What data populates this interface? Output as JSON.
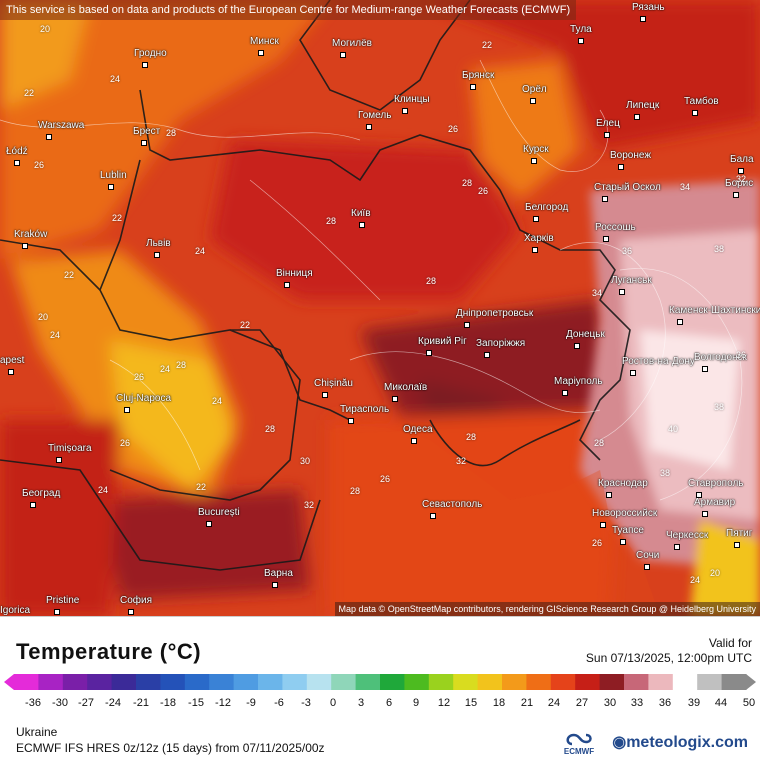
{
  "header_note": "This service is based on data and products of the European Centre for Medium-range Weather Forecasts (ECMWF)",
  "attribution": "Map data © OpenStreetMap contributors, rendering GIScience Research Group @ Heidelberg University",
  "map": {
    "cities": [
      {
        "name": "Гродно",
        "id": "grodno"
      },
      {
        "name": "Минск",
        "id": "minsk"
      },
      {
        "name": "Могилёв",
        "id": "mogilev"
      },
      {
        "name": "Брянск",
        "id": "bryansk"
      },
      {
        "name": "Тула",
        "id": "tula"
      },
      {
        "name": "Рязань",
        "id": "ryazan"
      },
      {
        "name": "Warszawa",
        "id": "warszawa"
      },
      {
        "name": "Брест",
        "id": "brest"
      },
      {
        "name": "Клинцы",
        "id": "klintsy"
      },
      {
        "name": "Орёл",
        "id": "orel"
      },
      {
        "name": "Липецк",
        "id": "lipetsk"
      },
      {
        "name": "Тамбов",
        "id": "tambov"
      },
      {
        "name": "Гомель",
        "id": "gomel"
      },
      {
        "name": "Елец",
        "id": "elets"
      },
      {
        "name": "Łódź",
        "id": "lodz"
      },
      {
        "name": "Lublin",
        "id": "lublin"
      },
      {
        "name": "Курск",
        "id": "kursk"
      },
      {
        "name": "Воронеж",
        "id": "voronezh"
      },
      {
        "name": "Бала",
        "id": "bala"
      },
      {
        "name": "Старый Оскол",
        "id": "stary-oskol"
      },
      {
        "name": "Борис",
        "id": "boris"
      },
      {
        "name": "Київ",
        "id": "kyiv"
      },
      {
        "name": "Белгород",
        "id": "belgorod"
      },
      {
        "name": "Kraków",
        "id": "krakow"
      },
      {
        "name": "Львів",
        "id": "lviv"
      },
      {
        "name": "Харків",
        "id": "kharkiv"
      },
      {
        "name": "Россошь",
        "id": "rossosh"
      },
      {
        "name": "Вінниця",
        "id": "vinnytsia"
      },
      {
        "name": "Луганськ",
        "id": "luhansk"
      },
      {
        "name": "Каменск-Шахтинский",
        "id": "kamensk"
      },
      {
        "name": "Дніпропетровськ",
        "id": "dnipro"
      },
      {
        "name": "Донецьк",
        "id": "donetsk"
      },
      {
        "name": "Кривий Ріг",
        "id": "kryvyi-rih"
      },
      {
        "name": "Запоріжжя",
        "id": "zaporizhzhia"
      },
      {
        "name": "Ростов-на-Дону",
        "id": "rostov"
      },
      {
        "name": "Волгодонск",
        "id": "volgodonsk"
      },
      {
        "name": "Cluj-Napoca",
        "id": "cluj"
      },
      {
        "name": "Chișinău",
        "id": "chisinau"
      },
      {
        "name": "Миколаїв",
        "id": "mykolaiv"
      },
      {
        "name": "Маріуполь",
        "id": "mariupol"
      },
      {
        "name": "Тирасполь",
        "id": "tiraspol"
      },
      {
        "name": "Одеса",
        "id": "odesa"
      },
      {
        "name": "Timișoara",
        "id": "timisoara"
      },
      {
        "name": "Краснодар",
        "id": "krasnodar"
      },
      {
        "name": "Ставрополь",
        "id": "stavropol"
      },
      {
        "name": "Београд",
        "id": "beograd"
      },
      {
        "name": "Севастополь",
        "id": "sevastopol"
      },
      {
        "name": "Армавир",
        "id": "armavir"
      },
      {
        "name": "București",
        "id": "bucuresti"
      },
      {
        "name": "Новороссийск",
        "id": "novorossiysk"
      },
      {
        "name": "Туапсе",
        "id": "tuapse"
      },
      {
        "name": "Черкесск",
        "id": "cherkessk"
      },
      {
        "name": "Пятиг",
        "id": "pyatig"
      },
      {
        "name": "Сочи",
        "id": "sochi"
      },
      {
        "name": "Варна",
        "id": "varna"
      },
      {
        "name": "Pristine",
        "id": "pristine"
      },
      {
        "name": "София",
        "id": "sofia"
      },
      {
        "name": "apest",
        "id": "apest"
      },
      {
        "name": "Igorica",
        "id": "igorica"
      }
    ],
    "temperature_labels": [
      "20",
      "22",
      "24",
      "26",
      "28",
      "22",
      "26",
      "22",
      "24",
      "22",
      "24",
      "28",
      "26",
      "28",
      "22",
      "24",
      "26",
      "28",
      "24",
      "20",
      "24",
      "26",
      "22",
      "28",
      "26",
      "28",
      "32",
      "28",
      "34",
      "36",
      "38",
      "38",
      "40",
      "38",
      "36",
      "34",
      "32",
      "28",
      "26",
      "30",
      "32",
      "28",
      "20",
      "24"
    ]
  },
  "legend": {
    "title": "Temperature (°C)",
    "valid_label": "Valid for",
    "valid_time": "Sun 07/13/2025, 12:00pm UTC",
    "ticks": [
      "-36",
      "-30",
      "-27",
      "-24",
      "-21",
      "-18",
      "-15",
      "-12",
      "-9",
      "-6",
      "-3",
      "0",
      "3",
      "6",
      "9",
      "12",
      "15",
      "18",
      "21",
      "24",
      "27",
      "30",
      "33",
      "36",
      "39",
      "44",
      "50"
    ],
    "colors": [
      "#e42bd9",
      "#a823c4",
      "#7a1fa8",
      "#5a23a0",
      "#3b2a98",
      "#2a3fa6",
      "#2452b8",
      "#2a6ac9",
      "#3a82d6",
      "#4f9ce2",
      "#6bb5ea",
      "#8fcdf0",
      "#b7e2ef",
      "#8fd6b9",
      "#4ec07a",
      "#1fa83a",
      "#4dbb20",
      "#9ad21e",
      "#d9dc1f",
      "#f2c31c",
      "#f39a1a",
      "#ef6e16",
      "#e5431a",
      "#c61f17",
      "#8e1d23",
      "#c76778",
      "#ecb8bd",
      "#ffffff",
      "#c0c0c0",
      "#8a8a8a"
    ]
  },
  "footer": {
    "region": "Ukraine",
    "model": "ECMWF IFS HRES 0z/12z (15 days) from 07/11/2025/00z",
    "brand": "meteologix.com",
    "logo_text": "ECMWF"
  }
}
